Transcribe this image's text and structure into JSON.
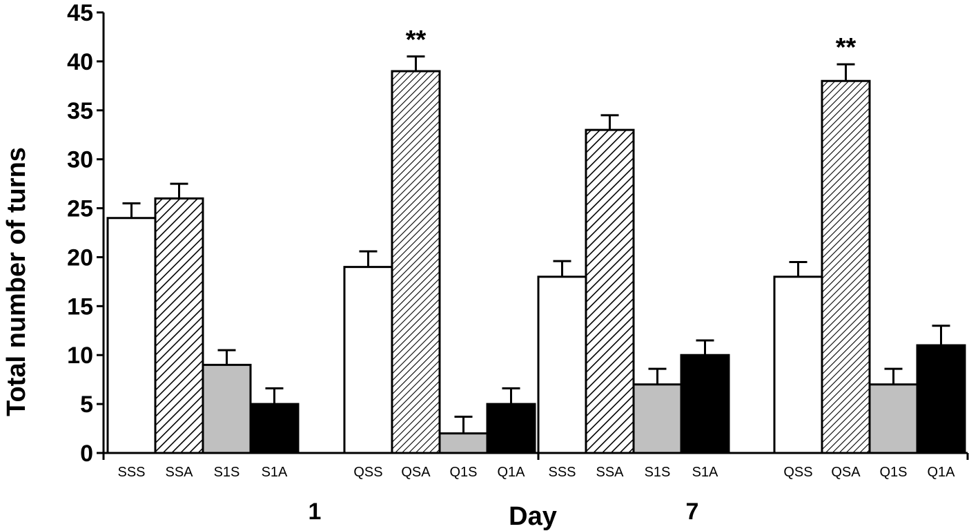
{
  "chart_data": {
    "type": "bar",
    "title": "",
    "xlabel": "Day",
    "ylabel": "Total number of turns",
    "ylim": [
      0,
      45
    ],
    "yticks": [
      0,
      5,
      10,
      15,
      20,
      25,
      30,
      35,
      40,
      45
    ],
    "grid": false,
    "legend": "none",
    "day_labels": [
      "1",
      "7"
    ],
    "groups": [
      {
        "day": "1",
        "bars": [
          {
            "label": "SSS",
            "value": 24,
            "error": 1.5,
            "fill": "white"
          },
          {
            "label": "SSA",
            "value": 26,
            "error": 1.5,
            "fill": "hatch-dense"
          },
          {
            "label": "S1S",
            "value": 9,
            "error": 1.5,
            "fill": "gray"
          },
          {
            "label": "S1A",
            "value": 5,
            "error": 1.6,
            "fill": "black"
          }
        ]
      },
      {
        "day": "1",
        "bars": [
          {
            "label": "QSS",
            "value": 19,
            "error": 1.6,
            "fill": "white"
          },
          {
            "label": "QSA",
            "value": 39,
            "error": 1.5,
            "fill": "hatch-fine",
            "annotation": "**"
          },
          {
            "label": "Q1S",
            "value": 2,
            "error": 1.7,
            "fill": "gray"
          },
          {
            "label": "Q1A",
            "value": 5,
            "error": 1.6,
            "fill": "black"
          }
        ]
      },
      {
        "day": "7",
        "bars": [
          {
            "label": "SSS",
            "value": 18,
            "error": 1.6,
            "fill": "white"
          },
          {
            "label": "SSA",
            "value": 33,
            "error": 1.5,
            "fill": "hatch-dense"
          },
          {
            "label": "S1S",
            "value": 7,
            "error": 1.6,
            "fill": "gray"
          },
          {
            "label": "S1A",
            "value": 10,
            "error": 1.5,
            "fill": "black"
          }
        ]
      },
      {
        "day": "7",
        "bars": [
          {
            "label": "QSS",
            "value": 18,
            "error": 1.5,
            "fill": "white"
          },
          {
            "label": "QSA",
            "value": 38,
            "error": 1.7,
            "fill": "hatch-fine",
            "annotation": "**"
          },
          {
            "label": "Q1S",
            "value": 7,
            "error": 1.6,
            "fill": "gray"
          },
          {
            "label": "Q1A",
            "value": 11,
            "error": 2.0,
            "fill": "black"
          }
        ]
      }
    ],
    "colors": {
      "white": "#ffffff",
      "gray": "#c0c0c0",
      "black": "#000000",
      "stroke": "#000000"
    }
  }
}
